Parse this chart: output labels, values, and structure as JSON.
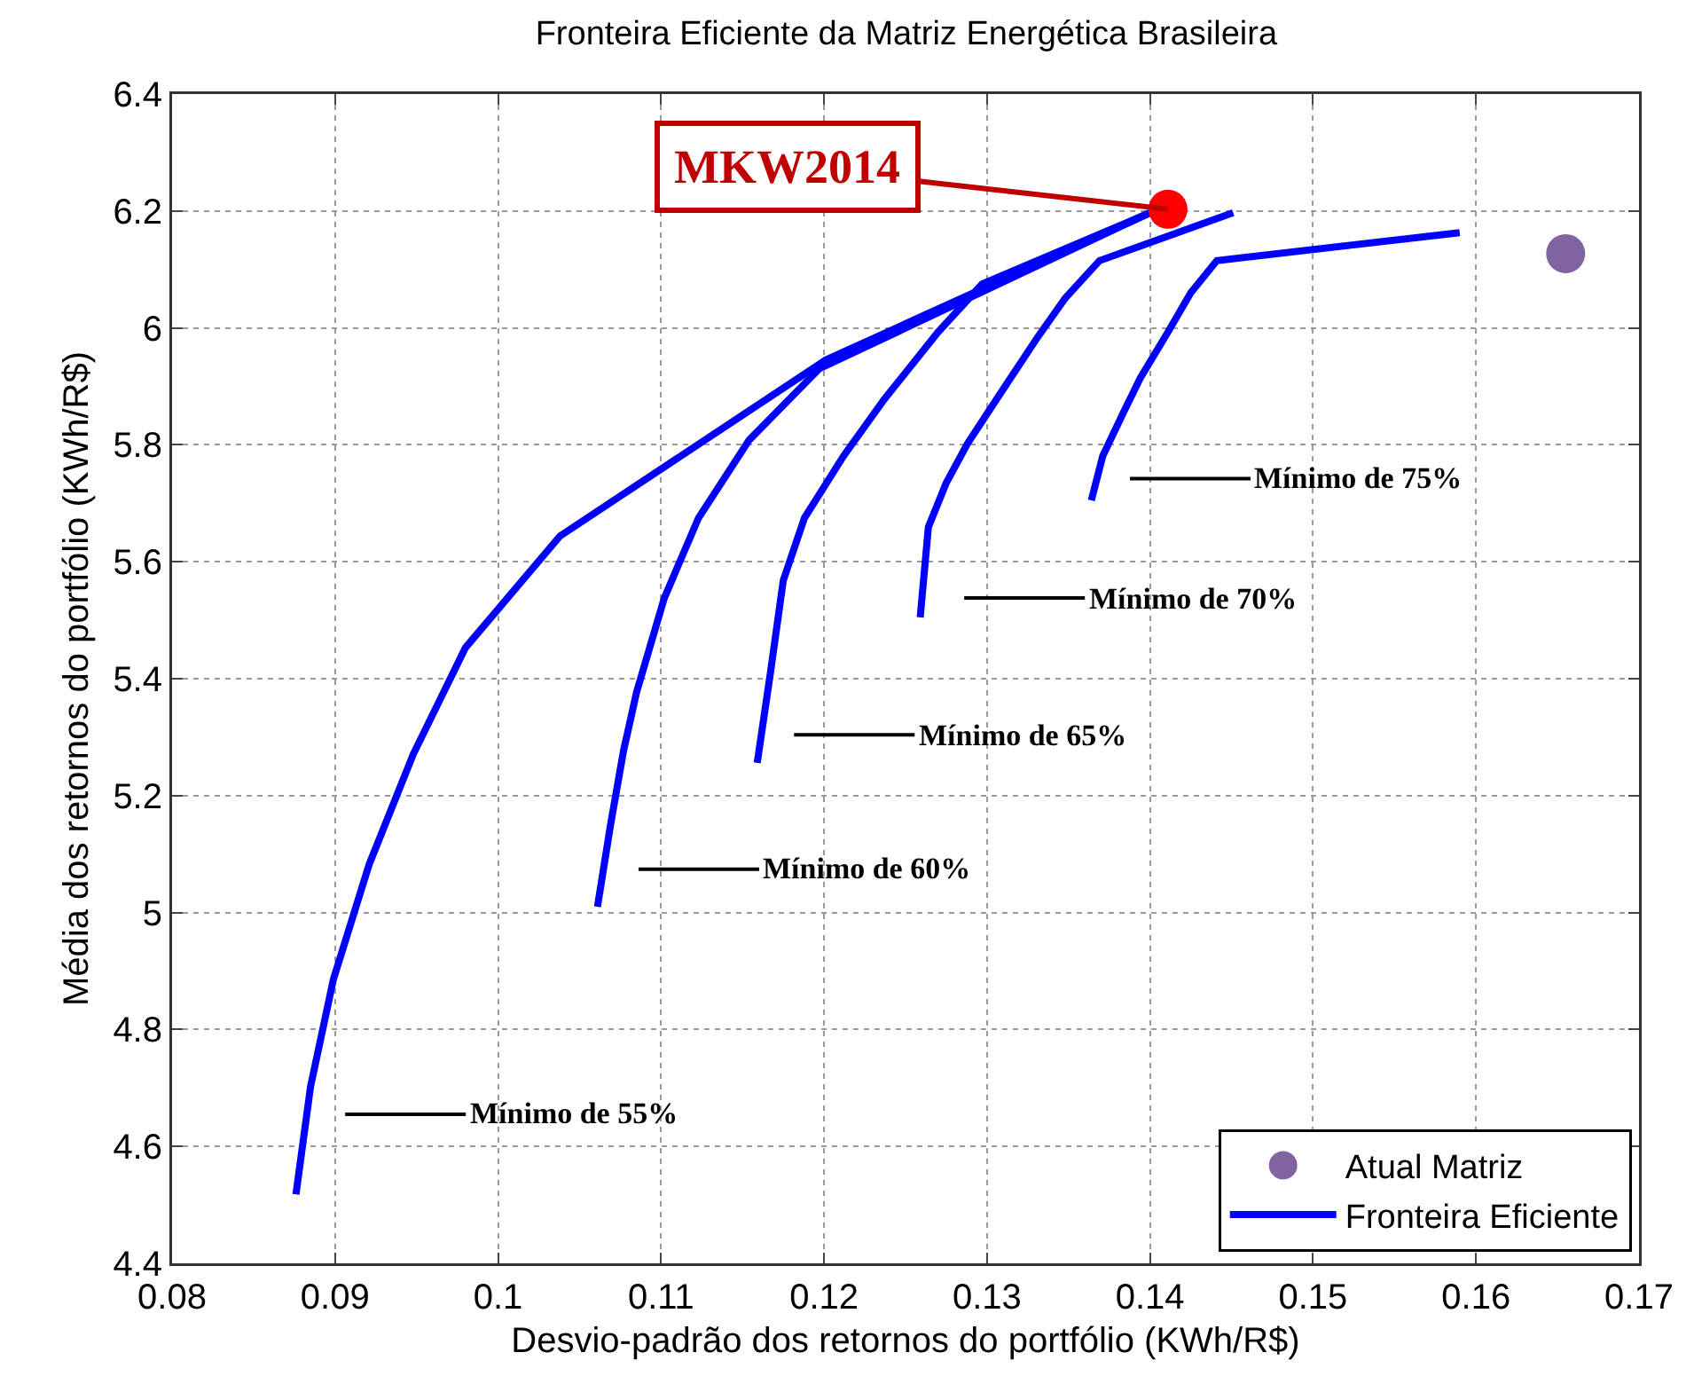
{
  "chart_data": {
    "type": "line",
    "title": "Fronteira Eficiente da Matriz Energética Brasileira",
    "xlabel": "Desvio-padrão dos retornos do portfólio (KWh/R$)",
    "ylabel": "Média dos retornos do portfólio (KWh/R$)",
    "xlim": [
      0.08,
      0.17
    ],
    "xticks": [
      0.08,
      0.09,
      0.1,
      0.11,
      0.12,
      0.13,
      0.14,
      0.15,
      0.16,
      0.17
    ],
    "ylim": [
      4.4,
      6.4
    ],
    "yticks": [
      4.4,
      4.6,
      4.8,
      5,
      5.2,
      5.4,
      5.6,
      5.8,
      6,
      6.2,
      6.4
    ],
    "grid": true,
    "legend": "bottom right",
    "line_style": "solid",
    "series": [
      {
        "name": "Atual Matriz",
        "type": "scatter",
        "marker": "circle",
        "color": "#8064a2",
        "x": [
          0.1655
        ],
        "values": [
          6.127
        ]
      },
      {
        "name": "Fronteira Eficiente",
        "color": "#0000ff",
        "x": [
          0.0876,
          0.0885,
          0.0899,
          0.0921,
          0.0948,
          0.098,
          0.1038,
          0.1201,
          0.14
        ],
        "values": [
          4.518,
          4.703,
          4.886,
          5.083,
          5.271,
          5.453,
          5.644,
          5.945,
          6.197
        ]
      },
      {
        "color": "#0000ff",
        "x": [
          0.1061,
          0.1069,
          0.1077,
          0.1085,
          0.1102,
          0.1123,
          0.1154,
          0.1197,
          0.14
        ],
        "values": [
          5.01,
          5.15,
          5.277,
          5.377,
          5.538,
          5.675,
          5.808,
          5.93,
          6.197
        ]
      },
      {
        "color": "#0000ff",
        "x": [
          0.1159,
          0.1167,
          0.1175,
          0.1188,
          0.1212,
          0.1237,
          0.127,
          0.1297,
          0.14
        ],
        "values": [
          5.256,
          5.408,
          5.568,
          5.675,
          5.781,
          5.878,
          5.993,
          6.075,
          6.197
        ]
      },
      {
        "color": "#0000ff",
        "x": [
          0.1259,
          0.1264,
          0.1275,
          0.1288,
          0.1308,
          0.1331,
          0.1348,
          0.1369,
          0.1451
        ],
        "values": [
          5.505,
          5.659,
          5.735,
          5.802,
          5.887,
          5.984,
          6.051,
          6.115,
          6.197
        ]
      },
      {
        "color": "#0000ff",
        "x": [
          0.1364,
          0.1371,
          0.1384,
          0.1394,
          0.1411,
          0.1425,
          0.1441,
          0.159
        ],
        "values": [
          5.705,
          5.781,
          5.857,
          5.914,
          5.993,
          6.06,
          6.115,
          6.163
        ]
      },
      {
        "type": "scatter",
        "marker": "circle",
        "color": "#ff0000",
        "x": [
          0.1411
        ],
        "values": [
          6.203
        ]
      }
    ],
    "annotations": [
      {
        "text": "MKW2014",
        "x": 0.1411,
        "y": 6.203
      },
      "Mínimo de 55%",
      "Mínimo de 60%",
      "Mínimo de 65%",
      "Mínimo de 70%",
      "Mínimo de 75%"
    ]
  }
}
